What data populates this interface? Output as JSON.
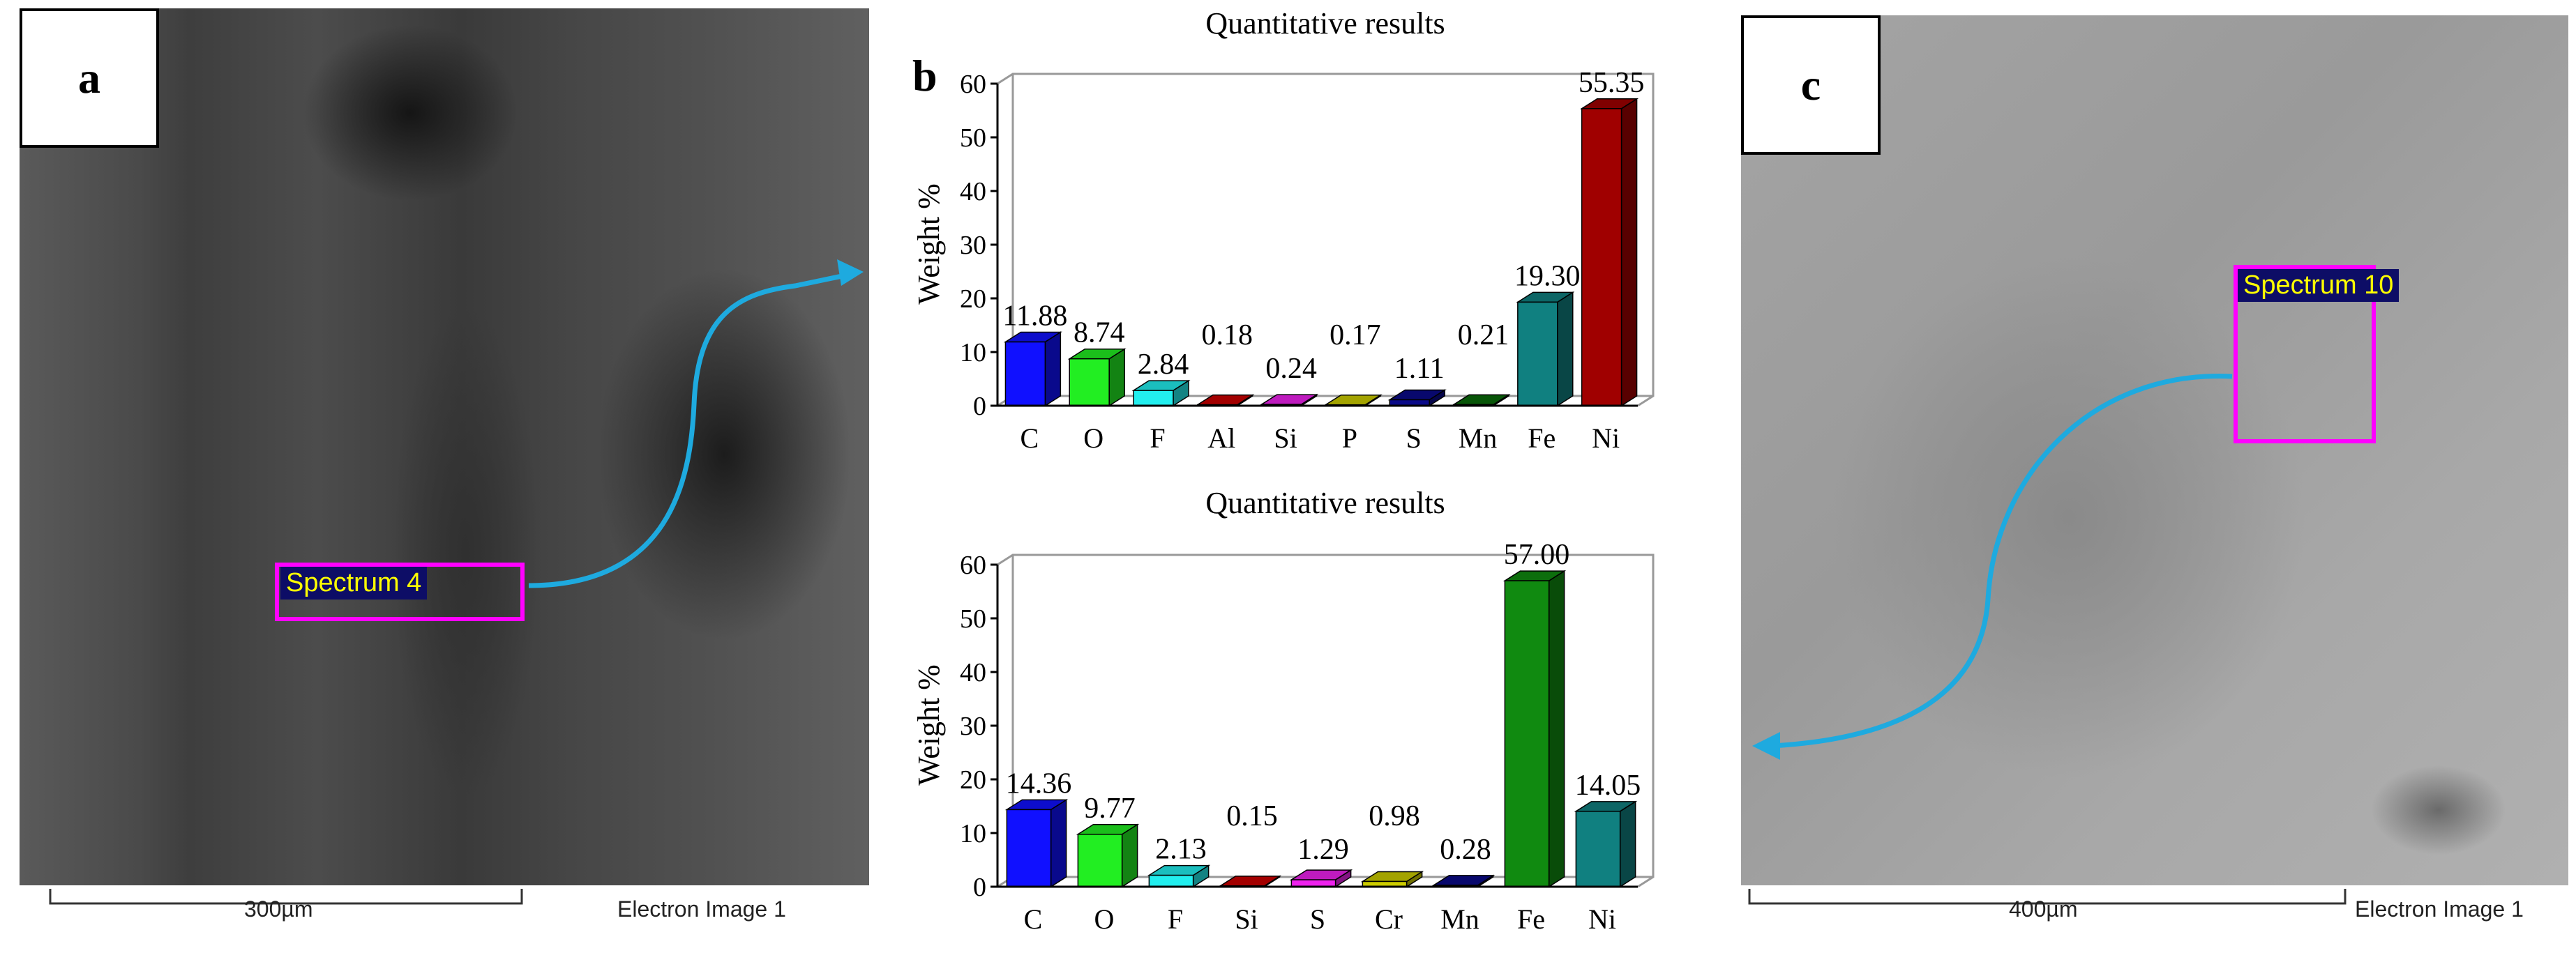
{
  "panels": {
    "a": {
      "letter": "a",
      "spectrum_label": "Spectrum 4",
      "scale_label": "300µm",
      "image_caption": "Electron Image 1"
    },
    "b": {
      "letter": "b"
    },
    "c": {
      "letter": "c",
      "spectrum_label": "Spectrum 10",
      "scale_label": "400µm",
      "image_caption": "Electron Image 1"
    }
  },
  "colors": {
    "arrow": "#1eaadf",
    "spectrum_box": "#ff00ff",
    "spectrum_label_bg": "#0d0d66",
    "spectrum_label_text": "#ffff00"
  },
  "chart_data": [
    {
      "type": "bar",
      "title": "Quantitative results",
      "ylabel": "Weight %",
      "ylim": [
        0,
        60
      ],
      "yticks": [
        0,
        10,
        20,
        30,
        40,
        50,
        60
      ],
      "grid": false,
      "categories": [
        "C",
        "O",
        "F",
        "Al",
        "Si",
        "P",
        "S",
        "Mn",
        "Fe",
        "Ni"
      ],
      "values": [
        11.88,
        8.74,
        2.84,
        0.18,
        0.24,
        0.17,
        1.11,
        0.21,
        19.3,
        55.35
      ],
      "value_labels": [
        "11.88",
        "8.74",
        "2.84",
        "0.18",
        "0.24",
        "0.17",
        "1.11",
        "0.21",
        "19.30",
        "55.35"
      ],
      "bar_colors": [
        "#1010ff",
        "#22ee22",
        "#22eeee",
        "#cc0000",
        "#ee22ee",
        "#cccc00",
        "#0a0a88",
        "#0a6a0a",
        "#108080",
        "#a00000"
      ]
    },
    {
      "type": "bar",
      "title": "Quantitative results",
      "ylabel": "Weight %",
      "ylim": [
        0,
        60
      ],
      "yticks": [
        0,
        10,
        20,
        30,
        40,
        50,
        60
      ],
      "grid": false,
      "categories": [
        "C",
        "O",
        "F",
        "Si",
        "S",
        "Cr",
        "Mn",
        "Fe",
        "Ni"
      ],
      "values": [
        14.36,
        9.77,
        2.13,
        0.15,
        1.29,
        0.98,
        0.28,
        57.0,
        14.05
      ],
      "value_labels": [
        "14.36",
        "9.77",
        "2.13",
        "0.15",
        "1.29",
        "0.98",
        "0.28",
        "57.00",
        "14.05"
      ],
      "bar_colors": [
        "#1010ff",
        "#22ee22",
        "#22eeee",
        "#cc0000",
        "#ee22ee",
        "#cccc00",
        "#0a0a88",
        "#108a10",
        "#108080"
      ]
    }
  ]
}
